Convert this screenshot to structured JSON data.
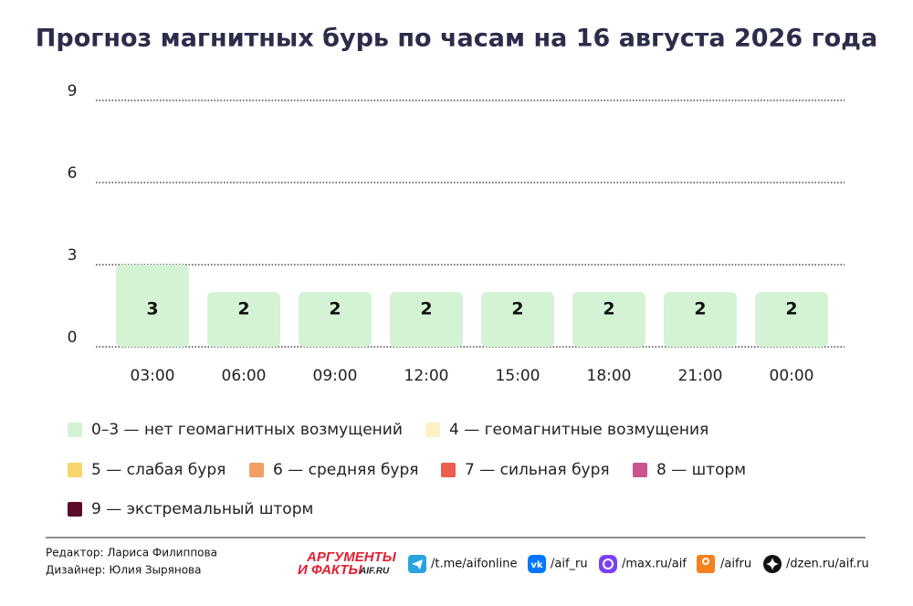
{
  "chart_data": {
    "type": "bar",
    "title": "Прогноз магнитных бурь по часам на 16 августа 2026 года",
    "categories": [
      "03:00",
      "06:00",
      "09:00",
      "12:00",
      "15:00",
      "18:00",
      "21:00",
      "00:00"
    ],
    "values": [
      3,
      2,
      2,
      2,
      2,
      2,
      2,
      2
    ],
    "color": "#d4f3d4",
    "ylim": [
      0,
      9
    ],
    "yticks": [
      0,
      3,
      6,
      9
    ],
    "grid": true,
    "legend_items": [
      {
        "label": "0–3 — нет геомагнитных возмущений",
        "color": "#d4f3d4"
      },
      {
        "label": "4 — геомагнитные возмущения",
        "color": "#fdf0c5"
      },
      {
        "label": "5 — слабая буря",
        "color": "#f8d46c"
      },
      {
        "label": "6 — средняя буря",
        "color": "#f49d65"
      },
      {
        "label": "7 — сильная буря",
        "color": "#ec5f50"
      },
      {
        "label": "8 — шторм",
        "color": "#c8558e"
      },
      {
        "label": "9 — экстремальный шторм",
        "color": "#5c0a2a"
      }
    ]
  },
  "footer": {
    "editor": "Редактор: Лариса Филиппова",
    "designer": "Дизайнер: Юлия Зырянова",
    "logo": [
      "АРГУМЕНТЫ",
      "И ФАКТЫ",
      "AIF.RU"
    ],
    "links": [
      "/t.me/aifonline",
      "/aif_ru",
      "/max.ru/aif",
      "/aifru",
      "/dzen.ru/aif.ru"
    ]
  }
}
